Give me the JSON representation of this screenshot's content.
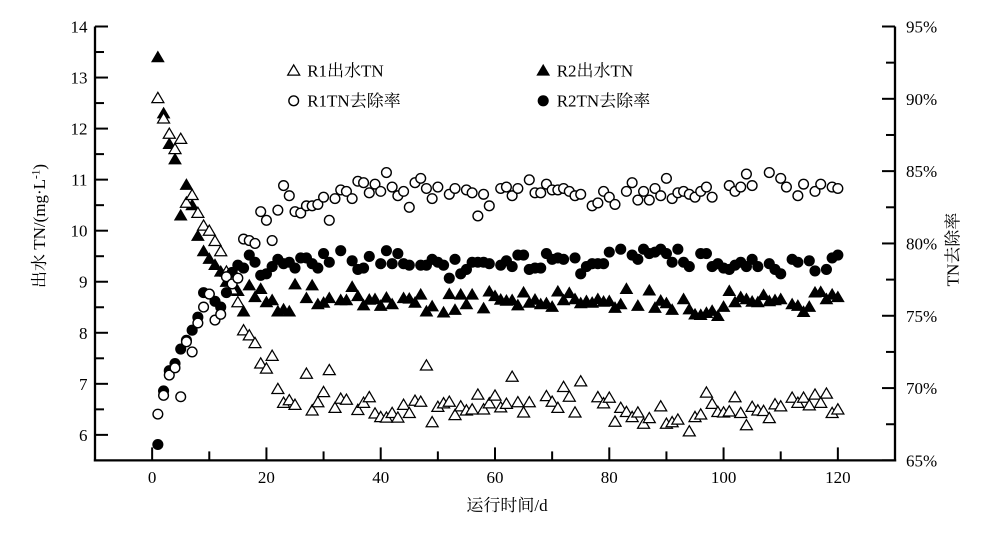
{
  "figure": {
    "background": "#ffffff",
    "foreground": "#000000"
  },
  "chart_data": {
    "type": "scatter",
    "x": [
      1,
      2,
      3,
      4,
      5,
      6,
      7,
      8,
      9,
      10,
      11,
      12,
      13,
      14,
      15,
      16,
      17,
      18,
      19,
      20,
      21,
      22,
      23,
      24,
      25,
      26,
      27,
      28,
      29,
      30,
      31,
      32,
      33,
      34,
      35,
      36,
      37,
      38,
      39,
      40,
      41,
      42,
      43,
      44,
      45,
      46,
      47,
      48,
      49,
      50,
      51,
      52,
      53,
      54,
      55,
      56,
      57,
      58,
      59,
      60,
      61,
      62,
      63,
      64,
      65,
      66,
      67,
      68,
      69,
      70,
      71,
      72,
      73,
      74,
      75,
      76,
      77,
      78,
      79,
      80,
      81,
      82,
      83,
      84,
      85,
      86,
      87,
      88,
      89,
      90,
      91,
      92,
      93,
      94,
      95,
      96,
      97,
      98,
      99,
      100,
      101,
      102,
      103,
      104,
      105,
      106,
      107,
      108,
      109,
      110,
      111,
      112,
      113,
      114,
      115,
      116,
      117,
      118,
      119,
      120
    ],
    "x_axis": {
      "label": "运行时间/d",
      "min": -10,
      "max": 130,
      "major_ticks": [
        0,
        20,
        40,
        60,
        80,
        100,
        120
      ],
      "tick_labels": [
        "0",
        "20",
        "40",
        "60",
        "80",
        "100",
        "120"
      ],
      "minor_ticks": [
        10,
        30,
        50,
        70,
        90,
        110
      ]
    },
    "y_axis_left": {
      "label": "出水 TN/(mg·L⁻¹)",
      "min": 5.5,
      "max": 14,
      "major_ticks": [
        6,
        7,
        8,
        9,
        10,
        11,
        12,
        13,
        14
      ],
      "tick_labels": [
        "6",
        "7",
        "8",
        "9",
        "10",
        "11",
        "12",
        "13",
        "14"
      ],
      "minor_ticks": [
        6.5,
        7.5,
        8.5,
        9.5,
        10.5,
        11.5,
        12.5,
        13.5
      ]
    },
    "y_axis_right": {
      "label": "TN去除率",
      "min": 65,
      "max": 95,
      "unit": "%",
      "major_ticks": [
        65,
        70,
        75,
        80,
        85,
        90,
        95
      ],
      "tick_labels": [
        "65%",
        "70%",
        "75%",
        "80%",
        "85%",
        "90%",
        "95%"
      ],
      "minor_ticks": [
        67.5,
        72.5,
        77.5,
        82.5,
        87.5,
        92.5
      ]
    },
    "grid": false,
    "legend_position": "upper-center-two-columns",
    "series": [
      {
        "name": "R1出水TN",
        "marker": "triangle-open",
        "axis": "left",
        "y": [
          12.6,
          12.2,
          11.9,
          11.6,
          11.8,
          10.55,
          10.7,
          10.35,
          10.1,
          10.0,
          9.8,
          9.6,
          9.2,
          8.85,
          8.6,
          8.05,
          7.95,
          7.8,
          7.4,
          7.3,
          7.55,
          6.9,
          6.63,
          6.68,
          6.59,
          null,
          7.2,
          6.48,
          6.64,
          6.84,
          7.27,
          6.53,
          6.71,
          6.69,
          null,
          6.49,
          6.63,
          6.74,
          6.42,
          6.35,
          6.34,
          6.43,
          6.34,
          6.59,
          6.43,
          6.67,
          6.65,
          7.36,
          6.25,
          6.55,
          6.62,
          6.65,
          6.39,
          6.56,
          6.48,
          6.5,
          6.79,
          6.5,
          6.62,
          6.77,
          6.54,
          6.61,
          7.14,
          6.64,
          6.44,
          6.64,
          null,
          null,
          6.76,
          6.65,
          6.53,
          6.94,
          6.75,
          6.44,
          7.05,
          null,
          null,
          6.74,
          6.62,
          6.73,
          6.26,
          6.53,
          6.45,
          6.35,
          6.44,
          6.22,
          6.33,
          null,
          6.56,
          6.22,
          6.25,
          6.3,
          null,
          6.07,
          6.35,
          6.4,
          6.83,
          6.61,
          6.45,
          6.44,
          6.46,
          6.74,
          6.43,
          6.19,
          6.55,
          6.48,
          6.47,
          6.33,
          6.6,
          6.56,
          null,
          6.73,
          6.63,
          6.73,
          6.58,
          6.79,
          6.63,
          6.81,
          6.43,
          6.5
        ]
      },
      {
        "name": "R2出水TN",
        "marker": "triangle-filled",
        "axis": "left",
        "y": [
          13.4,
          12.3,
          11.7,
          11.4,
          10.3,
          10.9,
          10.5,
          9.9,
          9.6,
          9.45,
          9.33,
          9.2,
          9.0,
          8.9,
          8.82,
          8.42,
          8.93,
          8.7,
          8.86,
          8.6,
          8.64,
          8.42,
          8.46,
          8.42,
          8.95,
          null,
          8.68,
          8.93,
          8.56,
          8.59,
          8.68,
          null,
          8.64,
          8.64,
          8.9,
          8.72,
          8.54,
          8.65,
          8.66,
          8.53,
          8.69,
          8.56,
          null,
          8.68,
          8.67,
          8.59,
          8.75,
          8.42,
          8.52,
          null,
          8.4,
          8.76,
          8.45,
          8.75,
          8.56,
          8.75,
          null,
          8.48,
          8.81,
          8.72,
          8.65,
          8.63,
          8.64,
          8.54,
          8.79,
          8.59,
          8.65,
          8.56,
          8.58,
          8.51,
          8.81,
          8.64,
          8.78,
          8.66,
          8.58,
          8.62,
          8.59,
          8.66,
          8.61,
          8.62,
          8.49,
          8.56,
          8.86,
          null,
          8.53,
          null,
          8.83,
          8.49,
          8.63,
          8.58,
          8.45,
          null,
          8.66,
          8.46,
          8.36,
          8.35,
          8.39,
          8.43,
          8.33,
          8.51,
          8.82,
          8.6,
          8.7,
          8.66,
          8.61,
          8.6,
          8.74,
          8.62,
          8.64,
          8.66,
          null,
          8.56,
          8.53,
          8.41,
          8.51,
          8.79,
          8.8,
          8.66,
          8.75,
          8.7
        ]
      },
      {
        "name": "R1TN去除率",
        "marker": "circle-open",
        "axis": "right",
        "y": [
          68.2,
          69.5,
          70.9,
          71.4,
          69.4,
          73.2,
          72.5,
          74.5,
          75.6,
          76.5,
          74.7,
          75.1,
          77.7,
          77.2,
          77.6,
          80.3,
          80.2,
          80.0,
          82.2,
          81.6,
          80.2,
          82.3,
          84.0,
          83.3,
          82.2,
          82.1,
          82.6,
          82.6,
          82.7,
          83.2,
          81.6,
          83.1,
          83.7,
          83.6,
          83.1,
          84.3,
          84.2,
          83.5,
          84.1,
          83.6,
          84.9,
          83.9,
          83.3,
          83.6,
          82.5,
          84.2,
          84.5,
          83.8,
          83.1,
          83.9,
          null,
          83.4,
          83.8,
          null,
          83.7,
          83.5,
          81.9,
          83.4,
          82.6,
          null,
          83.8,
          83.9,
          83.3,
          83.8,
          null,
          84.4,
          83.5,
          83.5,
          84.1,
          83.7,
          83.7,
          83.8,
          83.6,
          83.3,
          83.4,
          null,
          82.6,
          82.8,
          83.6,
          83.2,
          82.7,
          null,
          83.6,
          84.2,
          83.0,
          83.6,
          83.0,
          83.8,
          83.3,
          84.5,
          83.1,
          83.5,
          83.6,
          83.4,
          83.2,
          83.6,
          83.9,
          83.2,
          null,
          null,
          84.0,
          83.6,
          83.9,
          84.8,
          84.0,
          null,
          null,
          84.9,
          null,
          84.5,
          83.9,
          null,
          83.3,
          84.1,
          null,
          83.6,
          84.1,
          null,
          83.9,
          83.8
        ]
      },
      {
        "name": "R2TN去除率",
        "marker": "circle-filled",
        "axis": "right",
        "y": [
          66.1,
          69.8,
          71.2,
          71.7,
          72.7,
          73.3,
          74.0,
          74.9,
          76.6,
          76.5,
          76.0,
          75.6,
          76.6,
          78.0,
          78.5,
          78.3,
          79.2,
          78.7,
          77.8,
          77.9,
          78.4,
          78.9,
          78.6,
          78.7,
          78.3,
          79.0,
          79.0,
          78.6,
          78.3,
          79.3,
          78.7,
          null,
          79.5,
          null,
          78.8,
          78.2,
          78.3,
          79.1,
          null,
          78.6,
          79.5,
          78.6,
          79.3,
          78.6,
          78.5,
          null,
          78.5,
          78.5,
          78.9,
          78.7,
          78.5,
          77.6,
          78.9,
          77.9,
          78.2,
          78.7,
          78.7,
          78.7,
          78.6,
          null,
          78.5,
          78.8,
          78.4,
          79.2,
          79.2,
          78.2,
          78.3,
          78.3,
          79.3,
          78.9,
          79.0,
          78.9,
          null,
          79.0,
          77.9,
          78.4,
          78.6,
          78.6,
          78.6,
          79.4,
          null,
          79.6,
          null,
          79.2,
          78.9,
          79.6,
          79.3,
          79.4,
          79.6,
          79.3,
          78.7,
          79.6,
          78.7,
          78.4,
          null,
          79.3,
          79.3,
          78.4,
          78.6,
          78.3,
          78.2,
          78.5,
          78.7,
          78.4,
          78.9,
          78.4,
          null,
          78.6,
          78.2,
          77.9,
          null,
          78.9,
          78.7,
          null,
          78.8,
          78.1,
          null,
          78.2,
          79.0,
          79.2
        ]
      }
    ]
  }
}
